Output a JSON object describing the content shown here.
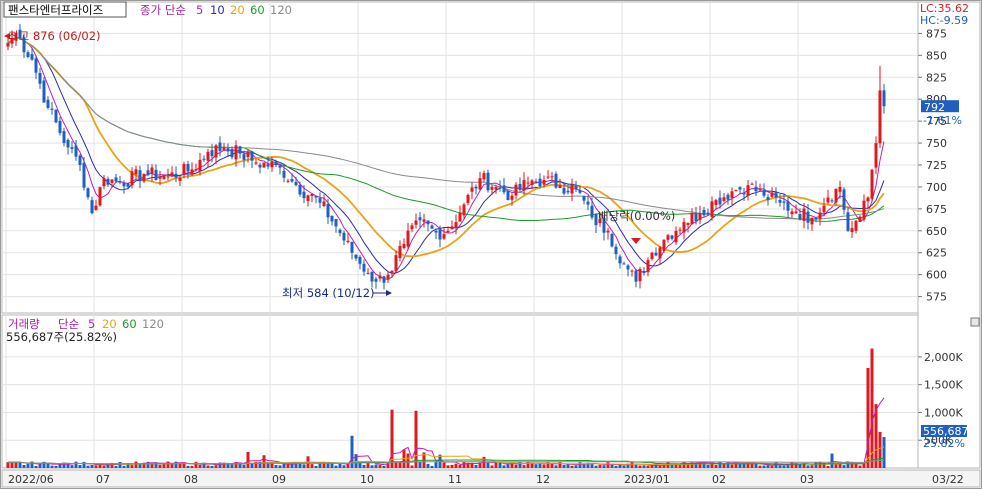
{
  "header": {
    "stock_name": "팬스타엔터프라이즈",
    "ma_label_prefix": "종가 단순",
    "ma_periods": [
      {
        "label": "5",
        "color": "#c21fb5"
      },
      {
        "label": "10",
        "color": "#2b2ba8"
      },
      {
        "label": "20",
        "color": "#e8a317"
      },
      {
        "label": "60",
        "color": "#1e9a2a"
      },
      {
        "label": "120",
        "color": "#8a8a8a"
      }
    ],
    "lc_label": "LC:35.62",
    "hc_label": "HC:-9.59"
  },
  "volume_header": {
    "title": "거래량",
    "ma_label_prefix": "단순",
    "ma_periods": [
      {
        "label": "5",
        "color": "#c21fb5"
      },
      {
        "label": "20",
        "color": "#e8a317"
      },
      {
        "label": "60",
        "color": "#1e9a2a"
      },
      {
        "label": "120",
        "color": "#8a8a8a"
      }
    ],
    "current_value_text": "556,687주(25.82%)"
  },
  "annotations": {
    "high": "최고 876 (06/02)",
    "low": "최저 584 (10/12)",
    "ex_rights": "배당락(0.00%)"
  },
  "badges": {
    "price_value": "792",
    "price_change": "-1.61%",
    "volume_value": "556,687",
    "volume_pct": "25.82%"
  },
  "colors": {
    "up": "#e0191f",
    "down": "#1f5fbf",
    "badge_bg": "#1f5fbf",
    "grid": "#e3e3e3",
    "axis_text": "#333333"
  },
  "chart_data": [
    {
      "type": "candlestick",
      "title": "팬스타엔터프라이즈",
      "y_ticks": [
        575,
        600,
        625,
        650,
        675,
        700,
        725,
        750,
        775,
        800,
        825,
        850,
        875
      ],
      "ylim": [
        562,
        888
      ],
      "x_labels": [
        "2022/06",
        "07",
        "08",
        "09",
        "10",
        "11",
        "12",
        "2023/01",
        "02",
        "03"
      ],
      "x_label_right": "03/22",
      "anchors": [
        {
          "i": 0,
          "v": 864
        },
        {
          "i": 2,
          "v": 876
        },
        {
          "i": 6,
          "v": 845
        },
        {
          "i": 10,
          "v": 790
        },
        {
          "i": 15,
          "v": 745
        },
        {
          "i": 18,
          "v": 725
        },
        {
          "i": 21,
          "v": 670
        },
        {
          "i": 24,
          "v": 710
        },
        {
          "i": 28,
          "v": 705
        },
        {
          "i": 34,
          "v": 715
        },
        {
          "i": 40,
          "v": 712
        },
        {
          "i": 46,
          "v": 720
        },
        {
          "i": 50,
          "v": 740
        },
        {
          "i": 54,
          "v": 745
        },
        {
          "i": 58,
          "v": 738
        },
        {
          "i": 62,
          "v": 728
        },
        {
          "i": 68,
          "v": 722
        },
        {
          "i": 72,
          "v": 702
        },
        {
          "i": 78,
          "v": 682
        },
        {
          "i": 82,
          "v": 655
        },
        {
          "i": 86,
          "v": 625
        },
        {
          "i": 90,
          "v": 602
        },
        {
          "i": 92,
          "v": 592
        },
        {
          "i": 95,
          "v": 600
        },
        {
          "i": 99,
          "v": 635
        },
        {
          "i": 103,
          "v": 662
        },
        {
          "i": 107,
          "v": 648
        },
        {
          "i": 110,
          "v": 650
        },
        {
          "i": 114,
          "v": 680
        },
        {
          "i": 118,
          "v": 710
        },
        {
          "i": 122,
          "v": 700
        },
        {
          "i": 126,
          "v": 690
        },
        {
          "i": 130,
          "v": 705
        },
        {
          "i": 134,
          "v": 708
        },
        {
          "i": 138,
          "v": 702
        },
        {
          "i": 142,
          "v": 698
        },
        {
          "i": 146,
          "v": 665
        },
        {
          "i": 150,
          "v": 650
        },
        {
          "i": 154,
          "v": 612
        },
        {
          "i": 157,
          "v": 592
        },
        {
          "i": 161,
          "v": 625
        },
        {
          "i": 165,
          "v": 645
        },
        {
          "i": 169,
          "v": 660
        },
        {
          "i": 173,
          "v": 670
        },
        {
          "i": 177,
          "v": 685
        },
        {
          "i": 181,
          "v": 695
        },
        {
          "i": 185,
          "v": 702
        },
        {
          "i": 189,
          "v": 690
        },
        {
          "i": 193,
          "v": 682
        },
        {
          "i": 197,
          "v": 672
        },
        {
          "i": 201,
          "v": 665
        },
        {
          "i": 205,
          "v": 688
        },
        {
          "i": 208,
          "v": 700
        },
        {
          "i": 210,
          "v": 650
        },
        {
          "i": 213,
          "v": 666
        },
        {
          "i": 215,
          "v": 688
        },
        {
          "i": 217,
          "v": 750
        },
        {
          "i": 218,
          "v": 810
        },
        {
          "i": 219,
          "v": 792
        }
      ],
      "high": {
        "value": 876,
        "date": "06/02"
      },
      "low": {
        "value": 584,
        "date": "10/12"
      },
      "last": {
        "value": 792,
        "change_pct": -1.61
      },
      "ma_periods": [
        5,
        10,
        20,
        60,
        120
      ]
    },
    {
      "type": "bar",
      "title": "거래량",
      "y_ticks": [
        500000,
        1000000,
        1500000,
        2000000
      ],
      "y_tick_labels": [
        "500K",
        "1,000K",
        "1,500K",
        "2,000K"
      ],
      "ylim": [
        0,
        2250000
      ],
      "base_volume": 90000,
      "spikes": [
        {
          "i": 60,
          "v": 290000
        },
        {
          "i": 64,
          "v": 230000
        },
        {
          "i": 75,
          "v": 210000
        },
        {
          "i": 86,
          "v": 580000
        },
        {
          "i": 87,
          "v": 250000
        },
        {
          "i": 96,
          "v": 1050000
        },
        {
          "i": 99,
          "v": 330000
        },
        {
          "i": 100,
          "v": 260000
        },
        {
          "i": 102,
          "v": 1030000
        },
        {
          "i": 104,
          "v": 280000
        },
        {
          "i": 108,
          "v": 240000
        },
        {
          "i": 119,
          "v": 200000
        },
        {
          "i": 206,
          "v": 260000
        },
        {
          "i": 215,
          "v": 1800000
        },
        {
          "i": 216,
          "v": 2150000
        },
        {
          "i": 217,
          "v": 1150000
        },
        {
          "i": 218,
          "v": 650000
        },
        {
          "i": 219,
          "v": 556687
        }
      ],
      "last": {
        "value": 556687,
        "pct": 25.82
      },
      "ma_periods": [
        5,
        20,
        60,
        120
      ]
    }
  ]
}
